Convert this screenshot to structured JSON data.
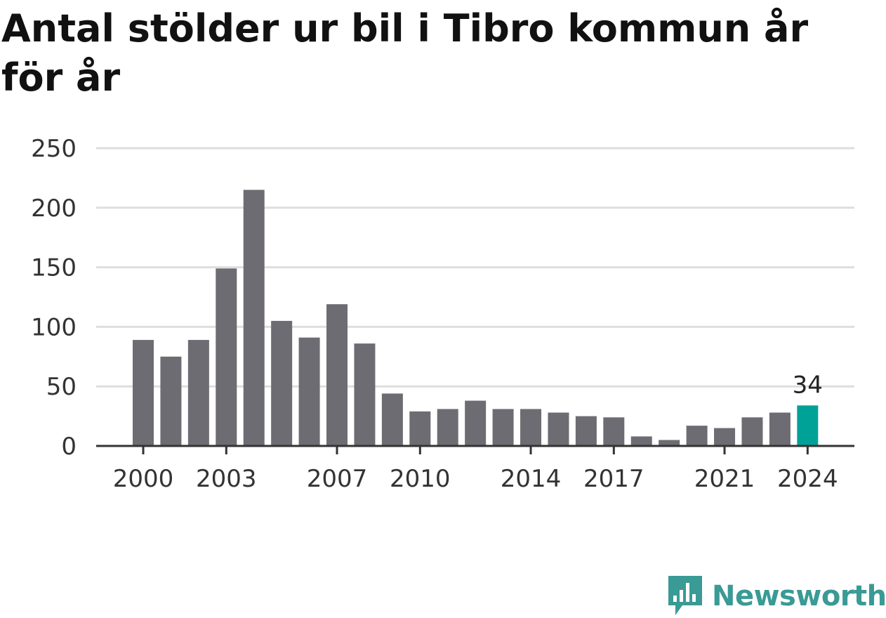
{
  "title": "Antal stölder ur bil i Tibro kommun år för år",
  "brand": {
    "name": "Newsworthy",
    "color": "#3a9a95"
  },
  "chart_data": {
    "type": "bar",
    "title": "Antal stölder ur bil i Tibro kommun år för år",
    "xlabel": "",
    "ylabel": "",
    "ylim": [
      0,
      250
    ],
    "yticks": [
      0,
      50,
      100,
      150,
      200,
      250
    ],
    "grid": true,
    "categories": [
      2000,
      2001,
      2002,
      2003,
      2004,
      2005,
      2006,
      2007,
      2008,
      2009,
      2010,
      2011,
      2012,
      2013,
      2014,
      2015,
      2016,
      2017,
      2018,
      2019,
      2020,
      2021,
      2022,
      2023,
      2024
    ],
    "xtick_labels": [
      2000,
      2003,
      2007,
      2010,
      2014,
      2017,
      2021,
      2024
    ],
    "values": [
      89,
      75,
      89,
      149,
      215,
      105,
      91,
      119,
      86,
      44,
      29,
      31,
      38,
      31,
      31,
      28,
      25,
      24,
      8,
      5,
      17,
      15,
      24,
      28,
      34
    ],
    "highlight_index": 24,
    "highlight_label": "34",
    "colors": {
      "bar": "#6d6c72",
      "highlight": "#00a298",
      "grid": "#dedede",
      "axis": "#333333"
    }
  }
}
